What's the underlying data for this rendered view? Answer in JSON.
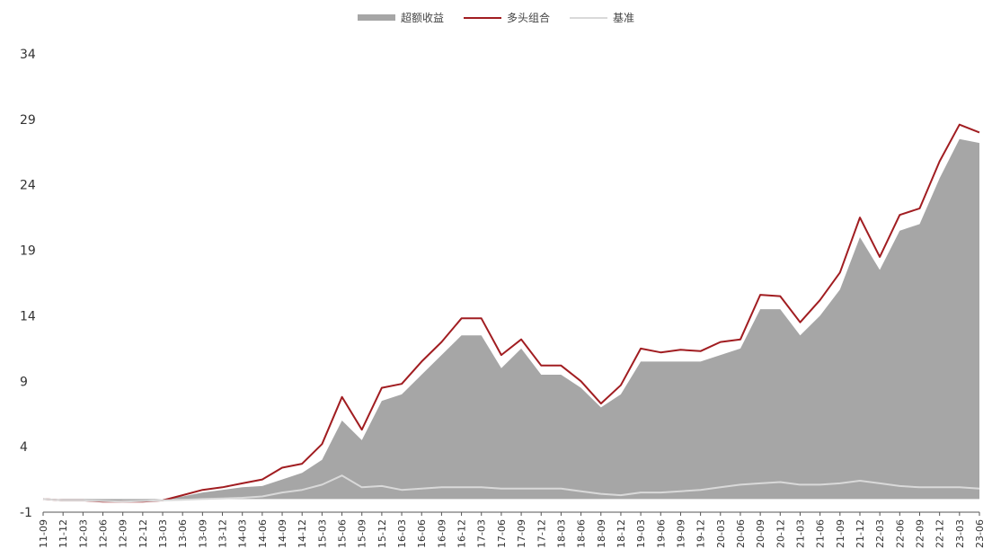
{
  "chart_data": {
    "type": "area",
    "legend_position": "top-center",
    "grid": false,
    "ylim": [
      -1,
      34
    ],
    "y_ticks": [
      -1,
      4,
      9,
      14,
      19,
      24,
      29,
      34
    ],
    "x": [
      "11-09",
      "11-12",
      "12-03",
      "12-06",
      "12-09",
      "12-12",
      "13-03",
      "13-06",
      "13-09",
      "13-12",
      "14-03",
      "14-06",
      "14-09",
      "14-12",
      "15-03",
      "15-06",
      "15-09",
      "15-12",
      "16-03",
      "16-06",
      "16-09",
      "16-12",
      "17-03",
      "17-06",
      "17-09",
      "17-12",
      "18-03",
      "18-06",
      "18-09",
      "18-12",
      "19-03",
      "19-06",
      "19-09",
      "19-12",
      "20-03",
      "20-06",
      "20-09",
      "20-12",
      "21-03",
      "21-06",
      "21-09",
      "21-12",
      "22-03",
      "22-06",
      "22-09",
      "22-12",
      "23-03",
      "23-06"
    ],
    "series": [
      {
        "name": "超额收益",
        "style": "area",
        "color": "#a6a6a6",
        "values": [
          0,
          -0.1,
          -0.1,
          -0.2,
          -0.1,
          -0.1,
          0,
          0.2,
          0.5,
          0.7,
          0.9,
          1.0,
          1.5,
          2.0,
          3.0,
          6.0,
          4.5,
          7.5,
          8.0,
          9.5,
          11.0,
          12.5,
          12.5,
          10.0,
          11.5,
          9.5,
          9.5,
          8.5,
          7.0,
          8.0,
          10.5,
          10.5,
          10.5,
          10.5,
          11.0,
          11.5,
          14.5,
          14.5,
          12.5,
          14.0,
          16.0,
          20.0,
          17.5,
          20.5,
          21.0,
          24.5,
          27.5,
          27.2
        ]
      },
      {
        "name": "多头组合",
        "style": "line",
        "color": "#a11d21",
        "values": [
          0,
          -0.1,
          -0.1,
          -0.2,
          -0.2,
          -0.2,
          -0.1,
          0.3,
          0.7,
          0.9,
          1.2,
          1.5,
          2.4,
          2.7,
          4.2,
          7.8,
          5.3,
          8.5,
          8.8,
          10.5,
          12.0,
          13.8,
          13.8,
          11.0,
          12.2,
          10.2,
          10.2,
          9.0,
          7.3,
          8.7,
          11.5,
          11.2,
          11.4,
          11.3,
          12.0,
          12.2,
          15.6,
          15.5,
          13.5,
          15.2,
          17.3,
          21.5,
          18.5,
          21.7,
          22.2,
          25.8,
          28.6,
          28.0
        ]
      },
      {
        "name": "基准",
        "style": "line",
        "color": "#d9d9d9",
        "values": [
          0,
          -0.1,
          -0.1,
          -0.15,
          -0.2,
          -0.15,
          -0.1,
          -0.05,
          0,
          0.05,
          0.1,
          0.2,
          0.5,
          0.7,
          1.1,
          1.8,
          0.9,
          1.0,
          0.7,
          0.8,
          0.9,
          0.9,
          0.9,
          0.8,
          0.8,
          0.8,
          0.8,
          0.6,
          0.4,
          0.3,
          0.5,
          0.5,
          0.6,
          0.7,
          0.9,
          1.1,
          1.2,
          1.3,
          1.1,
          1.1,
          1.2,
          1.4,
          1.2,
          1.0,
          0.9,
          0.9,
          0.9,
          0.8
        ]
      }
    ]
  },
  "legend": {
    "items": [
      {
        "label": "超额收益"
      },
      {
        "label": "多头组合"
      },
      {
        "label": "基准"
      }
    ]
  }
}
